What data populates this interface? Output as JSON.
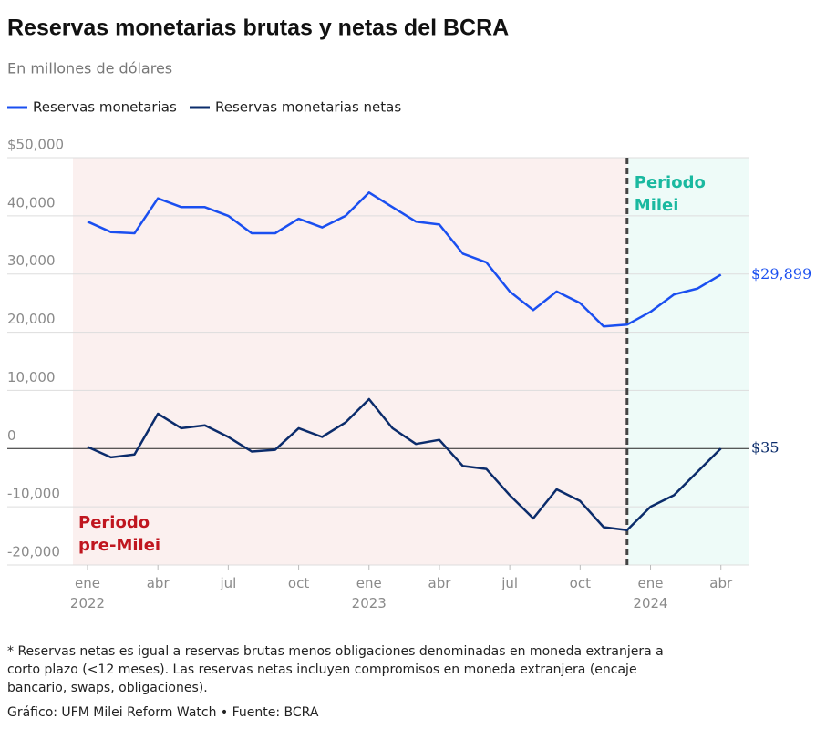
{
  "chart_data": {
    "type": "line",
    "title": "Reservas monetarias brutas y netas del BCRA",
    "subtitle": "En millones de dólares",
    "x": [
      "2022-01",
      "2022-02",
      "2022-03",
      "2022-04",
      "2022-05",
      "2022-06",
      "2022-07",
      "2022-08",
      "2022-09",
      "2022-10",
      "2022-11",
      "2022-12",
      "2023-01",
      "2023-02",
      "2023-03",
      "2023-04",
      "2023-05",
      "2023-06",
      "2023-07",
      "2023-08",
      "2023-09",
      "2023-10",
      "2023-11",
      "2023-12",
      "2024-01",
      "2024-02",
      "2024-03",
      "2024-04"
    ],
    "series": [
      {
        "name": "Reservas monetarias",
        "color": "#1a4ff0",
        "values": [
          39000,
          37200,
          37000,
          43000,
          41500,
          41500,
          40000,
          37000,
          37000,
          39500,
          38000,
          40000,
          44000,
          41500,
          39000,
          38500,
          33500,
          32000,
          27000,
          23800,
          27000,
          25000,
          21000,
          21300,
          23500,
          26500,
          27500,
          29899
        ],
        "value_labels": [
          null,
          null,
          null,
          null,
          null,
          null,
          null,
          null,
          null,
          null,
          null,
          null,
          null,
          null,
          null,
          null,
          null,
          null,
          null,
          null,
          null,
          null,
          null,
          null,
          null,
          null,
          null,
          "$29,899"
        ]
      },
      {
        "name": "Reservas monetarias netas",
        "color": "#0b2c6b",
        "values": [
          300,
          -1500,
          -1000,
          6000,
          3500,
          4000,
          2000,
          -500,
          -200,
          3500,
          2000,
          4500,
          8500,
          3500,
          800,
          1500,
          -3000,
          -3500,
          -8000,
          -12000,
          -7000,
          -9000,
          -13500,
          -14000,
          -10000,
          -8000,
          -4000,
          35
        ],
        "value_labels": [
          null,
          null,
          null,
          null,
          null,
          null,
          null,
          null,
          null,
          null,
          null,
          null,
          null,
          null,
          null,
          null,
          null,
          null,
          null,
          null,
          null,
          null,
          null,
          null,
          null,
          null,
          null,
          "$35"
        ]
      }
    ],
    "ylim": [
      -20000,
      50000
    ],
    "yticks": [
      {
        "value": -20000,
        "label": "-20,000"
      },
      {
        "value": -10000,
        "label": "-10,000"
      },
      0,
      {
        "value": 10000,
        "label": "10,000"
      },
      {
        "value": 20000,
        "label": "20,000"
      },
      {
        "value": 30000,
        "label": "30,000"
      },
      {
        "value": 40000,
        "label": "40,000"
      },
      {
        "value": 50000,
        "label": "$50,000"
      }
    ],
    "xticks": [
      {
        "value": "2022-01",
        "label": "ene 2022"
      },
      {
        "value": "2022-04",
        "label": "abr"
      },
      {
        "value": "2022-07",
        "label": "jul"
      },
      {
        "value": "2022-10",
        "label": "oct"
      },
      {
        "value": "2023-01",
        "label": "ene 2023"
      },
      {
        "value": "2023-04",
        "label": "abr"
      },
      {
        "value": "2023-07",
        "label": "jul"
      },
      {
        "value": "2023-10",
        "label": "oct"
      },
      {
        "value": "2024-01",
        "label": "ene 2024"
      },
      {
        "value": "2024-04",
        "label": "abr"
      }
    ],
    "grid": true,
    "annotations": [
      {
        "text": "Periodo Milei",
        "x": "2023-12",
        "color": "#1ab9a0"
      },
      {
        "text": "Periodo pre-Milei",
        "color": "#c0161f"
      }
    ],
    "footnote": "* Reservas netas es igual a reservas brutas menos obligaciones denominadas en moneda extranjera a corto plazo (<12 meses). Las reservas netas incluyen compromisos en moneda extranjera (encaje bancario, swaps, obligaciones).",
    "source": "Gráfico: UFM Milei Reform Watch • Fuente: BCRA"
  }
}
